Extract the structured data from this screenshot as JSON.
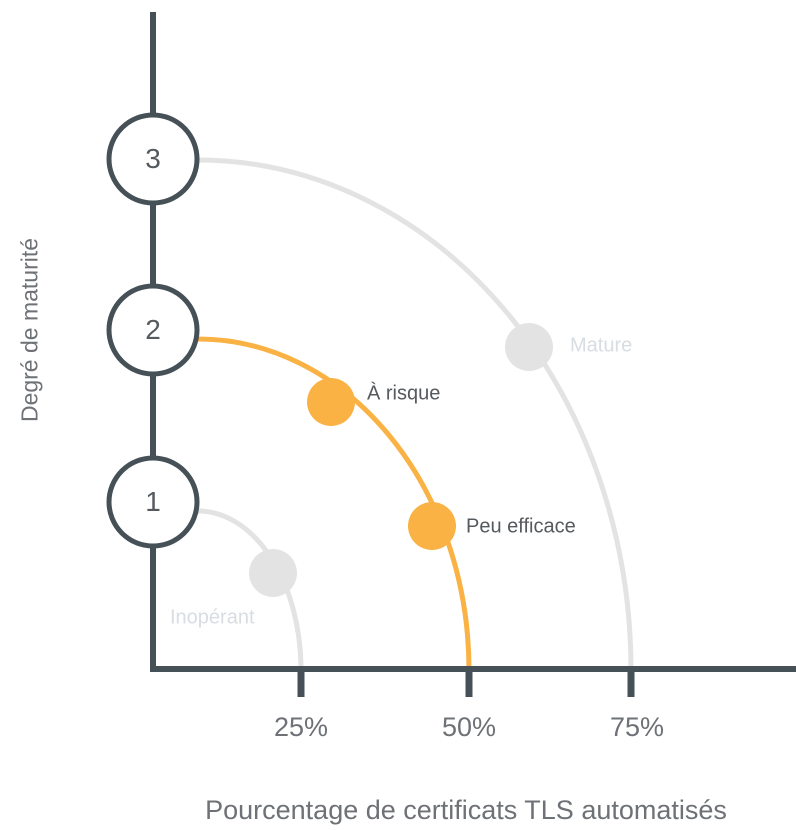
{
  "chart": {
    "xlabel": "Pourcentage de certificats TLS automatisés",
    "ylabel": "Degré de maturité",
    "ticks": [
      "25%",
      "50%",
      "75%"
    ],
    "levels": [
      "1",
      "2",
      "3"
    ],
    "points": [
      {
        "label": "Inopérant",
        "level": "1",
        "state": "inactive"
      },
      {
        "label": "À risque",
        "level": "2",
        "state": "active"
      },
      {
        "label": "Peu efficace",
        "level": "2",
        "state": "active"
      },
      {
        "label": "Mature",
        "level": "3",
        "state": "inactive"
      }
    ]
  },
  "colors": {
    "axis": "#455057",
    "active": "#f9b243",
    "inactive": "#e3e3e3",
    "inactive_text": "#d8dde2",
    "active_text": "#555a5e",
    "tick_text": "#6e7175"
  }
}
